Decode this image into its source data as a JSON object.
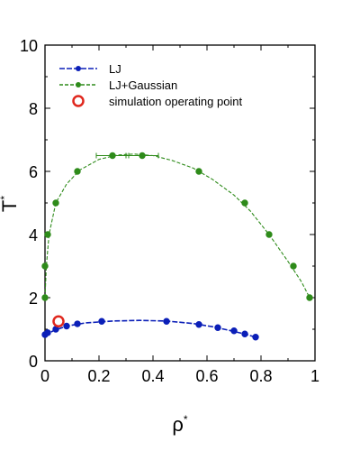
{
  "chart_data": {
    "type": "scatter",
    "xlabel": "ρ",
    "xlabel_sup": "*",
    "ylabel": "T",
    "ylabel_sup": "*",
    "xlim": [
      0,
      1
    ],
    "ylim": [
      0,
      10
    ],
    "x_ticks": [
      0,
      0.2,
      0.4,
      0.6,
      0.8,
      1
    ],
    "x_tick_labels": [
      "0",
      "0.2",
      "0.4",
      "0.6",
      "0.8",
      "1"
    ],
    "y_ticks": [
      0,
      2,
      4,
      6,
      8,
      10
    ],
    "y_tick_labels": [
      "0",
      "2",
      "4",
      "6",
      "8",
      "10"
    ],
    "grid": false,
    "legend_position": "top-left",
    "series": [
      {
        "name": "LJ",
        "color": "#0b1fb8",
        "marker": "circle",
        "line": "dashed",
        "x": [
          0.0,
          0.01,
          0.04,
          0.08,
          0.12,
          0.21,
          0.45,
          0.57,
          0.64,
          0.7,
          0.74,
          0.78
        ],
        "y": [
          0.83,
          0.89,
          1.0,
          1.1,
          1.17,
          1.25,
          1.25,
          1.15,
          1.05,
          0.95,
          0.85,
          0.75
        ],
        "curve_x": [
          0.0,
          0.03,
          0.08,
          0.15,
          0.25,
          0.35,
          0.45,
          0.55,
          0.62,
          0.68,
          0.74,
          0.78
        ],
        "curve_y": [
          0.8,
          0.95,
          1.1,
          1.2,
          1.26,
          1.28,
          1.26,
          1.18,
          1.08,
          0.97,
          0.85,
          0.75
        ]
      },
      {
        "name": "LJ+Gaussian",
        "color": "#2e8b1a",
        "marker": "circle",
        "line": "dashed",
        "x": [
          0.0,
          0.0,
          0.01,
          0.04,
          0.12,
          0.25,
          0.36,
          0.57,
          0.74,
          0.83,
          0.92,
          0.98
        ],
        "y": [
          2.0,
          3.0,
          4.0,
          5.0,
          6.0,
          6.5,
          6.5,
          6.0,
          5.0,
          4.0,
          3.0,
          2.0
        ],
        "x_error": [
          0,
          0,
          0,
          0,
          0,
          0.06,
          0.06,
          0,
          0,
          0,
          0,
          0
        ],
        "curve_x": [
          0.0,
          0.005,
          0.015,
          0.04,
          0.08,
          0.13,
          0.2,
          0.27,
          0.33,
          0.4,
          0.47,
          0.55,
          0.62,
          0.7,
          0.76,
          0.83,
          0.9,
          0.95,
          0.98
        ],
        "curve_y": [
          2.0,
          3.0,
          4.0,
          5.0,
          5.6,
          6.05,
          6.38,
          6.52,
          6.55,
          6.5,
          6.35,
          6.1,
          5.75,
          5.25,
          4.75,
          4.0,
          3.15,
          2.5,
          2.0
        ]
      },
      {
        "name": "simulation operating point",
        "color": "#e0281e",
        "marker": "open-circle",
        "line": "none",
        "x": [
          0.05
        ],
        "y": [
          1.25
        ]
      }
    ]
  }
}
